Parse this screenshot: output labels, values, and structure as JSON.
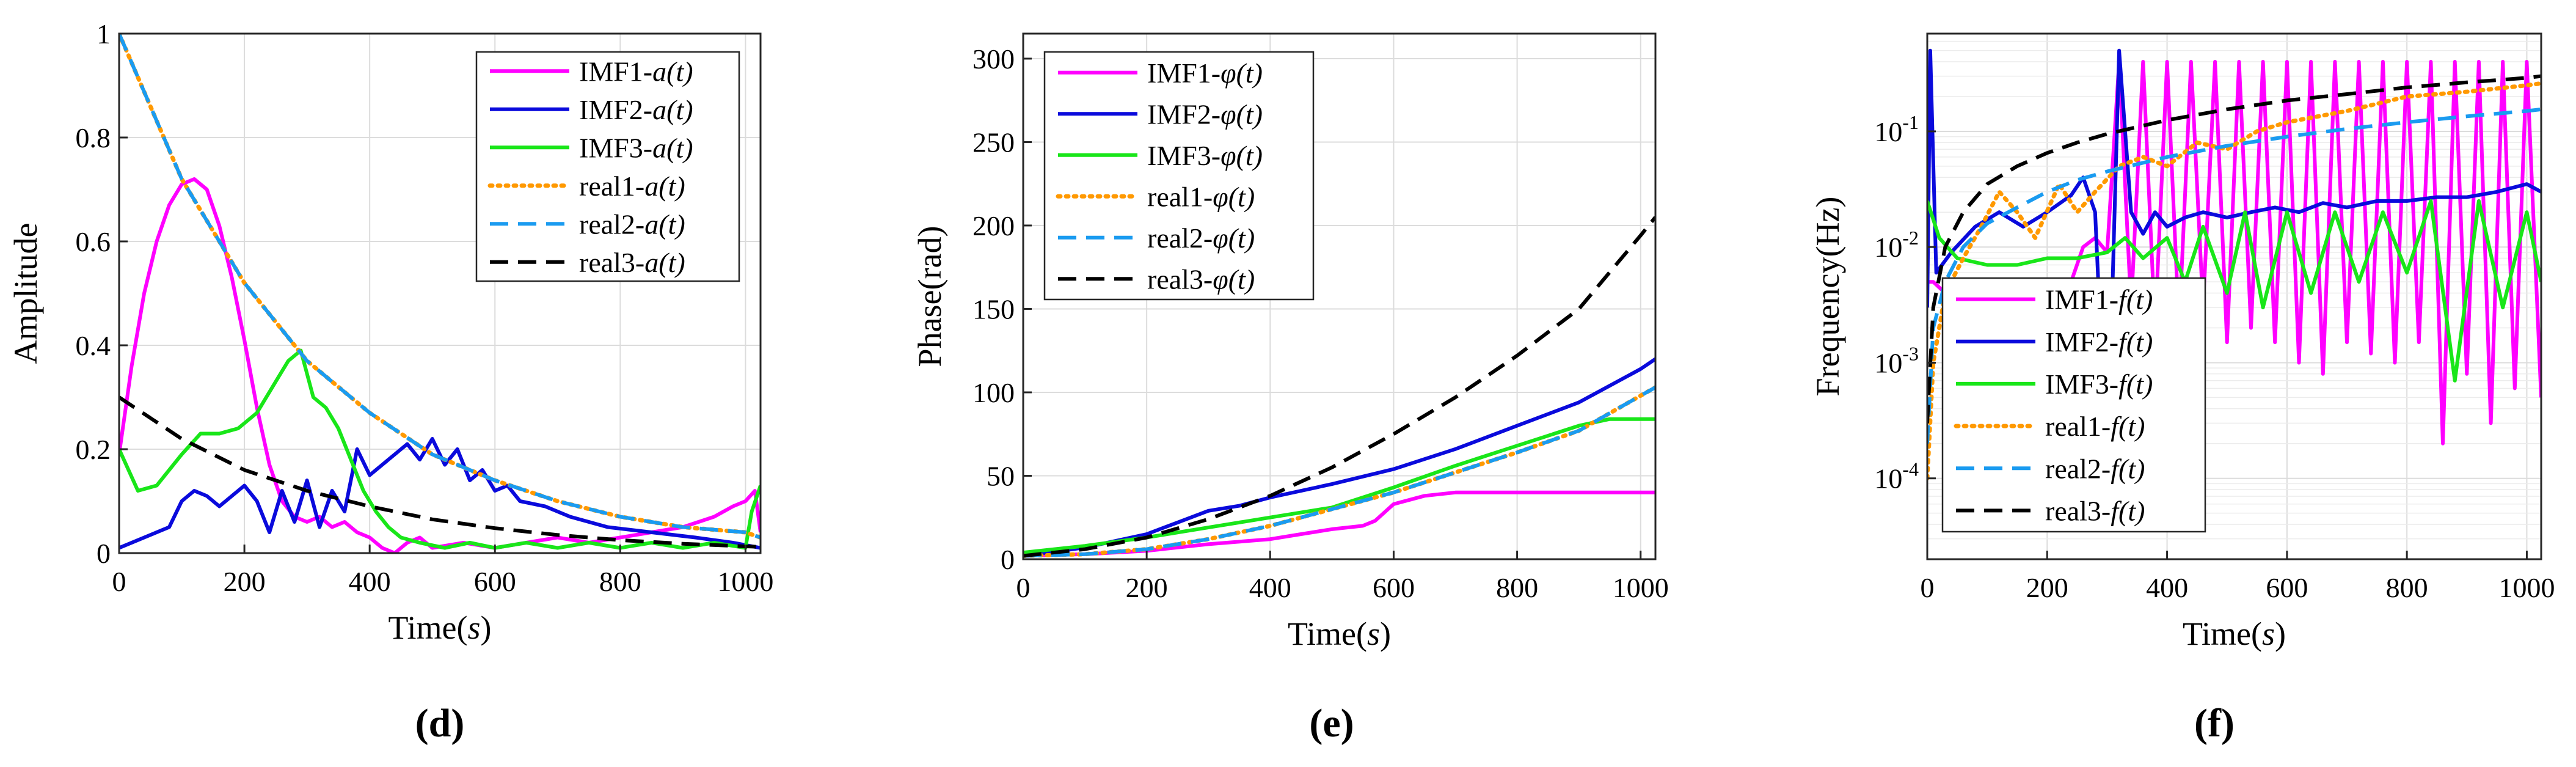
{
  "colors": {
    "imf1": "#ff00ff",
    "imf2": "#0a0adc",
    "imf3": "#19e619",
    "real1": "#ff9900",
    "real2": "#1a9bf0",
    "real3": "#000000",
    "grid": "#dcdcdc",
    "axis": "#262626"
  },
  "chart_data": [
    {
      "id": "d",
      "type": "line",
      "panel_label": "(d)",
      "xlabel": "Time(",
      "xlabel_var": "s",
      "xlabel_end": ")",
      "ylabel": "Amplitude",
      "xlim": [
        0,
        1024
      ],
      "ylim": [
        0,
        1
      ],
      "yscale": "linear",
      "xticks": [
        0,
        200,
        400,
        600,
        800,
        1000
      ],
      "xtick_labels": [
        "0",
        "200",
        "400",
        "600",
        "800",
        "1000"
      ],
      "yticks": [
        0,
        0.2,
        0.4,
        0.6,
        0.8,
        1
      ],
      "ytick_labels": [
        "0",
        "0.2",
        "0.4",
        "0.6",
        "0.8",
        "1"
      ],
      "legend_position": "top-right",
      "series": [
        {
          "name": "IMF1-",
          "var": "a(t)",
          "color_key": "imf1",
          "dash": "solid",
          "x": [
            0,
            20,
            40,
            60,
            80,
            100,
            120,
            140,
            160,
            180,
            200,
            220,
            240,
            260,
            280,
            300,
            320,
            340,
            360,
            380,
            400,
            420,
            440,
            460,
            480,
            500,
            550,
            600,
            650,
            700,
            750,
            800,
            850,
            900,
            950,
            980,
            1000,
            1015,
            1024
          ],
          "y": [
            0.19,
            0.36,
            0.5,
            0.6,
            0.67,
            0.71,
            0.72,
            0.7,
            0.63,
            0.53,
            0.41,
            0.28,
            0.17,
            0.1,
            0.07,
            0.06,
            0.07,
            0.05,
            0.06,
            0.04,
            0.03,
            0.01,
            0.0,
            0.02,
            0.03,
            0.01,
            0.02,
            0.01,
            0.02,
            0.03,
            0.02,
            0.03,
            0.04,
            0.05,
            0.07,
            0.09,
            0.1,
            0.12,
            0.04
          ]
        },
        {
          "name": "IMF2-",
          "var": "a(t)",
          "color_key": "imf2",
          "dash": "solid",
          "x": [
            0,
            40,
            80,
            100,
            120,
            140,
            160,
            180,
            200,
            220,
            240,
            260,
            280,
            300,
            320,
            340,
            360,
            380,
            400,
            420,
            440,
            460,
            480,
            500,
            520,
            540,
            560,
            580,
            600,
            620,
            640,
            680,
            720,
            780,
            850,
            920,
            980,
            1024
          ],
          "y": [
            0.01,
            0.03,
            0.05,
            0.1,
            0.12,
            0.11,
            0.09,
            0.11,
            0.13,
            0.1,
            0.04,
            0.12,
            0.06,
            0.14,
            0.05,
            0.12,
            0.08,
            0.2,
            0.15,
            0.17,
            0.19,
            0.21,
            0.18,
            0.22,
            0.17,
            0.2,
            0.14,
            0.16,
            0.12,
            0.13,
            0.1,
            0.09,
            0.07,
            0.05,
            0.04,
            0.03,
            0.02,
            0.01
          ]
        },
        {
          "name": "IMF3-",
          "var": "a(t)",
          "color_key": "imf3",
          "dash": "solid",
          "x": [
            0,
            30,
            60,
            100,
            130,
            160,
            190,
            220,
            250,
            270,
            290,
            310,
            330,
            350,
            370,
            390,
            410,
            430,
            450,
            480,
            520,
            560,
            600,
            650,
            700,
            750,
            800,
            850,
            900,
            950,
            1000,
            1010,
            1024
          ],
          "y": [
            0.2,
            0.12,
            0.13,
            0.19,
            0.23,
            0.23,
            0.24,
            0.27,
            0.33,
            0.37,
            0.39,
            0.3,
            0.28,
            0.24,
            0.18,
            0.12,
            0.08,
            0.05,
            0.03,
            0.02,
            0.01,
            0.02,
            0.01,
            0.02,
            0.01,
            0.02,
            0.01,
            0.02,
            0.01,
            0.02,
            0.01,
            0.08,
            0.13
          ]
        },
        {
          "name": "real1-",
          "var": "a(t)",
          "color_key": "real1",
          "dash": "dotted",
          "x": [
            0,
            100,
            200,
            300,
            400,
            500,
            600,
            700,
            800,
            900,
            1000,
            1024
          ],
          "y": [
            1.0,
            0.72,
            0.52,
            0.37,
            0.27,
            0.19,
            0.14,
            0.1,
            0.07,
            0.05,
            0.04,
            0.03
          ]
        },
        {
          "name": "real2-",
          "var": "a(t)",
          "color_key": "real2",
          "dash": "dashed",
          "x": [
            0,
            100,
            200,
            300,
            400,
            500,
            600,
            700,
            800,
            900,
            1000,
            1024
          ],
          "y": [
            1.0,
            0.72,
            0.52,
            0.37,
            0.27,
            0.19,
            0.14,
            0.1,
            0.07,
            0.05,
            0.04,
            0.03
          ]
        },
        {
          "name": "real3-",
          "var": "a(t)",
          "color_key": "real3",
          "dash": "dashed",
          "x": [
            0,
            100,
            200,
            300,
            400,
            500,
            600,
            700,
            800,
            900,
            1000,
            1024
          ],
          "y": [
            0.3,
            0.22,
            0.16,
            0.12,
            0.09,
            0.065,
            0.048,
            0.035,
            0.025,
            0.018,
            0.013,
            0.012
          ]
        }
      ]
    },
    {
      "id": "e",
      "type": "line",
      "panel_label": "(e)",
      "xlabel": "Time(",
      "xlabel_var": "s",
      "xlabel_end": ")",
      "ylabel": "Phase(rad)",
      "xlim": [
        0,
        1024
      ],
      "ylim": [
        0,
        315
      ],
      "yscale": "linear",
      "xticks": [
        0,
        200,
        400,
        600,
        800,
        1000
      ],
      "xtick_labels": [
        "0",
        "200",
        "400",
        "600",
        "800",
        "1000"
      ],
      "yticks": [
        0,
        50,
        100,
        150,
        200,
        250,
        300
      ],
      "ytick_labels": [
        "0",
        "50",
        "100",
        "150",
        "200",
        "250",
        "300"
      ],
      "legend_position": "top-left",
      "series": [
        {
          "name": "IMF1-",
          "var": "φ(t)",
          "color_key": "imf1",
          "dash": "solid",
          "x": [
            0,
            100,
            200,
            300,
            400,
            450,
            500,
            550,
            570,
            600,
            650,
            700,
            800,
            900,
            1000,
            1024
          ],
          "y": [
            2,
            3,
            5,
            9,
            12,
            15,
            18,
            20,
            23,
            33,
            38,
            40,
            40,
            40,
            40,
            40
          ]
        },
        {
          "name": "IMF2-",
          "var": "φ(t)",
          "color_key": "imf2",
          "dash": "solid",
          "x": [
            0,
            100,
            200,
            250,
            300,
            350,
            400,
            500,
            600,
            700,
            800,
            900,
            1000,
            1024
          ],
          "y": [
            2,
            7,
            15,
            22,
            29,
            32,
            37,
            45,
            54,
            66,
            80,
            94,
            114,
            120
          ]
        },
        {
          "name": "IMF3-",
          "var": "φ(t)",
          "color_key": "imf3",
          "dash": "solid",
          "x": [
            0,
            100,
            200,
            300,
            400,
            500,
            550,
            600,
            700,
            800,
            900,
            950,
            1000,
            1024
          ],
          "y": [
            4,
            8,
            13,
            19,
            25,
            31,
            37,
            43,
            56,
            68,
            80,
            84,
            84,
            84
          ]
        },
        {
          "name": "real1-",
          "var": "φ(t)",
          "color_key": "real1",
          "dash": "dotted",
          "x": [
            0,
            100,
            200,
            300,
            400,
            500,
            600,
            700,
            800,
            900,
            1000,
            1024
          ],
          "y": [
            2,
            3,
            6,
            12,
            20,
            30,
            40,
            52,
            64,
            77,
            98,
            103
          ]
        },
        {
          "name": "real2-",
          "var": "φ(t)",
          "color_key": "real2",
          "dash": "dashed",
          "x": [
            0,
            100,
            200,
            300,
            400,
            500,
            600,
            700,
            800,
            900,
            1000,
            1024
          ],
          "y": [
            2,
            3,
            6,
            12,
            20,
            30,
            40,
            52,
            64,
            77,
            98,
            103
          ]
        },
        {
          "name": "real3-",
          "var": "φ(t)",
          "color_key": "real3",
          "dash": "dashed",
          "x": [
            0,
            100,
            200,
            300,
            400,
            500,
            600,
            700,
            800,
            900,
            1000,
            1024
          ],
          "y": [
            2,
            6,
            13,
            24,
            38,
            55,
            75,
            97,
            122,
            150,
            194,
            205
          ]
        }
      ]
    },
    {
      "id": "f",
      "type": "line",
      "panel_label": "(f)",
      "xlabel": "Time(",
      "xlabel_var": "s",
      "xlabel_end": ")",
      "ylabel": "Frequency(Hz)",
      "xlim": [
        0,
        1024
      ],
      "ylim": [
        2e-05,
        0.7
      ],
      "yscale": "log",
      "xticks": [
        0,
        200,
        400,
        600,
        800,
        1000
      ],
      "xtick_labels": [
        "0",
        "200",
        "400",
        "600",
        "800",
        "1000"
      ],
      "yticks": [
        0.0001,
        0.001,
        0.01,
        0.1
      ],
      "ytick_base": [
        "10",
        "10",
        "10",
        "10"
      ],
      "ytick_exp": [
        "-4",
        "-3",
        "-2",
        "-1"
      ],
      "legend_position": "bottom-left",
      "series": [
        {
          "name": "IMF1-",
          "var": "f(t)",
          "color_key": "imf1",
          "dash": "solid",
          "x": [
            0,
            10,
            30,
            60,
            100,
            150,
            200,
            240,
            260,
            280,
            300,
            320,
            340,
            360,
            380,
            400,
            420,
            440,
            460,
            480,
            500,
            520,
            540,
            560,
            580,
            600,
            620,
            640,
            660,
            680,
            700,
            720,
            740,
            760,
            780,
            800,
            820,
            840,
            860,
            880,
            900,
            920,
            940,
            960,
            980,
            1000,
            1024
          ],
          "y": [
            0.005,
            0.005,
            0.004,
            0.0035,
            0.0035,
            0.0035,
            0.004,
            0.005,
            0.01,
            0.012,
            0.009,
            0.4,
            0.003,
            0.4,
            0.002,
            0.4,
            0.002,
            0.4,
            0.003,
            0.4,
            0.0015,
            0.4,
            0.002,
            0.4,
            0.0015,
            0.4,
            0.001,
            0.4,
            0.0008,
            0.4,
            0.0015,
            0.4,
            0.0012,
            0.4,
            0.001,
            0.4,
            0.0015,
            0.4,
            0.0002,
            0.4,
            0.0008,
            0.4,
            0.0003,
            0.4,
            0.0006,
            0.4,
            0.0005
          ]
        },
        {
          "name": "IMF2-",
          "var": "f(t)",
          "color_key": "imf2",
          "dash": "solid",
          "x": [
            0,
            5,
            15,
            40,
            80,
            120,
            160,
            200,
            240,
            260,
            280,
            300,
            320,
            340,
            360,
            380,
            400,
            430,
            460,
            500,
            540,
            580,
            620,
            660,
            700,
            750,
            800,
            850,
            900,
            950,
            1000,
            1024
          ],
          "y": [
            0.003,
            0.5,
            0.006,
            0.009,
            0.015,
            0.02,
            0.015,
            0.02,
            0.028,
            0.04,
            0.02,
            0.0001,
            0.5,
            0.02,
            0.013,
            0.02,
            0.015,
            0.018,
            0.02,
            0.018,
            0.02,
            0.022,
            0.02,
            0.024,
            0.022,
            0.025,
            0.025,
            0.027,
            0.027,
            0.03,
            0.035,
            0.03
          ]
        },
        {
          "name": "IMF3-",
          "var": "f(t)",
          "color_key": "imf3",
          "dash": "solid",
          "x": [
            0,
            20,
            50,
            100,
            150,
            200,
            250,
            300,
            330,
            360,
            400,
            430,
            460,
            500,
            530,
            560,
            600,
            640,
            680,
            720,
            760,
            800,
            840,
            880,
            920,
            960,
            1000,
            1024
          ],
          "y": [
            0.025,
            0.012,
            0.008,
            0.007,
            0.007,
            0.008,
            0.008,
            0.009,
            0.012,
            0.008,
            0.012,
            0.005,
            0.015,
            0.004,
            0.02,
            0.003,
            0.02,
            0.004,
            0.02,
            0.005,
            0.02,
            0.006,
            0.025,
            0.0007,
            0.025,
            0.003,
            0.02,
            0.005
          ]
        },
        {
          "name": "real1-",
          "var": "f(t)",
          "color_key": "real1",
          "dash": "dotted",
          "x": [
            0,
            10,
            30,
            60,
            90,
            120,
            150,
            180,
            220,
            250,
            280,
            320,
            360,
            400,
            450,
            500,
            550,
            600,
            700,
            800,
            900,
            1000,
            1024
          ],
          "y": [
            0.0001,
            0.001,
            0.004,
            0.008,
            0.015,
            0.03,
            0.02,
            0.012,
            0.035,
            0.02,
            0.03,
            0.05,
            0.06,
            0.05,
            0.08,
            0.07,
            0.1,
            0.12,
            0.15,
            0.2,
            0.22,
            0.25,
            0.26
          ]
        },
        {
          "name": "real2-",
          "var": "f(t)",
          "color_key": "real2",
          "dash": "dashed",
          "x": [
            0,
            10,
            30,
            60,
            100,
            150,
            200,
            250,
            300,
            400,
            500,
            600,
            700,
            800,
            900,
            1000,
            1024
          ],
          "y": [
            0.0002,
            0.002,
            0.005,
            0.01,
            0.016,
            0.022,
            0.03,
            0.038,
            0.045,
            0.06,
            0.075,
            0.09,
            0.105,
            0.12,
            0.135,
            0.15,
            0.155
          ]
        },
        {
          "name": "real3-",
          "var": "f(t)",
          "color_key": "real3",
          "dash": "dashed",
          "x": [
            0,
            10,
            30,
            60,
            100,
            150,
            200,
            250,
            300,
            400,
            500,
            600,
            700,
            800,
            900,
            1000,
            1024
          ],
          "y": [
            0.0003,
            0.003,
            0.01,
            0.02,
            0.035,
            0.05,
            0.065,
            0.08,
            0.095,
            0.125,
            0.155,
            0.185,
            0.21,
            0.24,
            0.265,
            0.29,
            0.3
          ]
        }
      ]
    }
  ]
}
